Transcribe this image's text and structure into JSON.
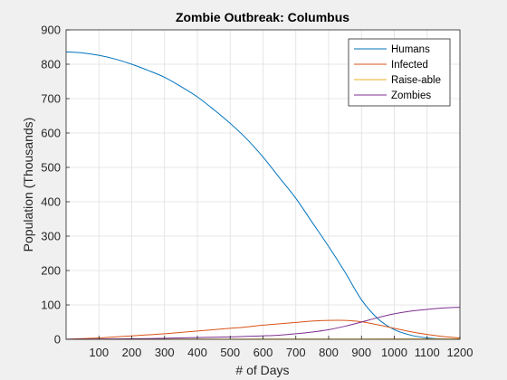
{
  "chart_data": {
    "type": "line",
    "title": "Zombie Outbreak: Columbus",
    "xlabel": "# of Days",
    "ylabel": "Population (Thousands)",
    "xlim": [
      0,
      1200
    ],
    "ylim": [
      0,
      900
    ],
    "xticks": [
      100,
      200,
      300,
      400,
      500,
      600,
      700,
      800,
      900,
      1000,
      1100,
      1200
    ],
    "yticks": [
      0,
      100,
      200,
      300,
      400,
      500,
      600,
      700,
      800,
      900
    ],
    "grid": true,
    "legend_position": "top-right",
    "series": [
      {
        "name": "Humans",
        "color": "#0072bd",
        "x": [
          0,
          50,
          100,
          150,
          200,
          250,
          300,
          350,
          400,
          450,
          500,
          550,
          600,
          650,
          700,
          750,
          800,
          850,
          900,
          950,
          1000,
          1050,
          1100,
          1150,
          1200
        ],
        "y": [
          836,
          833,
          826,
          815,
          800,
          782,
          762,
          735,
          705,
          668,
          628,
          583,
          530,
          470,
          410,
          340,
          270,
          195,
          115,
          60,
          28,
          12,
          4,
          1,
          0
        ]
      },
      {
        "name": "Infected",
        "color": "#d95319",
        "x": [
          0,
          50,
          100,
          150,
          200,
          250,
          300,
          350,
          400,
          450,
          500,
          550,
          600,
          650,
          700,
          750,
          800,
          850,
          900,
          950,
          1000,
          1050,
          1100,
          1150,
          1200
        ],
        "y": [
          0,
          2,
          4,
          7,
          10,
          13,
          16,
          20,
          24,
          28,
          32,
          36,
          41,
          45,
          49,
          53,
          55,
          55,
          51,
          42,
          32,
          22,
          14,
          8,
          4
        ]
      },
      {
        "name": "Raise-able",
        "color": "#edb120",
        "x": [
          0,
          300,
          600,
          900,
          1200
        ],
        "y": [
          0,
          0.2,
          0.5,
          0.8,
          1
        ]
      },
      {
        "name": "Zombies",
        "color": "#7e2f8e",
        "x": [
          0,
          50,
          100,
          150,
          200,
          250,
          300,
          350,
          400,
          450,
          500,
          550,
          600,
          650,
          700,
          750,
          800,
          850,
          900,
          950,
          1000,
          1050,
          1100,
          1150,
          1200
        ],
        "y": [
          0,
          0.3,
          0.6,
          1,
          1.5,
          2,
          3,
          4,
          5,
          6,
          7,
          8.5,
          10,
          12,
          16,
          21,
          28,
          38,
          50,
          63,
          74,
          82,
          87,
          91,
          93
        ]
      }
    ]
  }
}
